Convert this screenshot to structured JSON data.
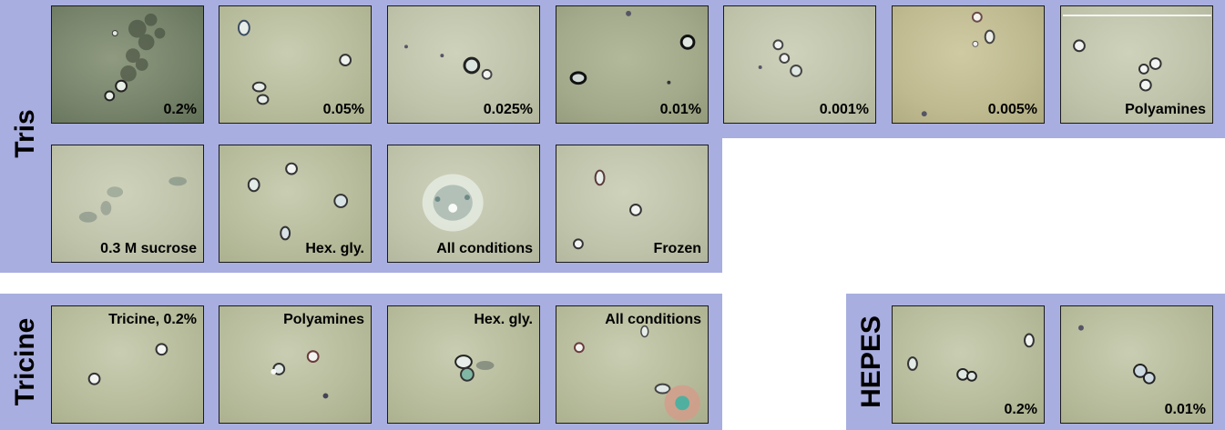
{
  "rows": {
    "tris": {
      "label": "Tris",
      "tiles": [
        {
          "caption": "0.2%"
        },
        {
          "caption": "0.05%"
        },
        {
          "caption": "0.025%"
        },
        {
          "caption": "0.01%"
        },
        {
          "caption": "0.001%"
        },
        {
          "caption": "0.005%"
        },
        {
          "caption": "Polyamines"
        },
        {
          "caption": "0.3 M sucrose"
        },
        {
          "caption": "Hex. gly."
        },
        {
          "caption": "All conditions"
        },
        {
          "caption": "Frozen"
        }
      ]
    },
    "tricine": {
      "label": "Tricine",
      "tiles": [
        {
          "caption": "Tricine, 0.2%"
        },
        {
          "caption": "Polyamines"
        },
        {
          "caption": "Hex. gly."
        },
        {
          "caption": "All conditions"
        }
      ]
    },
    "hepes": {
      "label": "HEPES",
      "tiles": [
        {
          "caption": "0.2%"
        },
        {
          "caption": "0.01%"
        }
      ]
    }
  },
  "colors": {
    "band": "#a8aedf",
    "tile_border": "#1a1a1a"
  }
}
